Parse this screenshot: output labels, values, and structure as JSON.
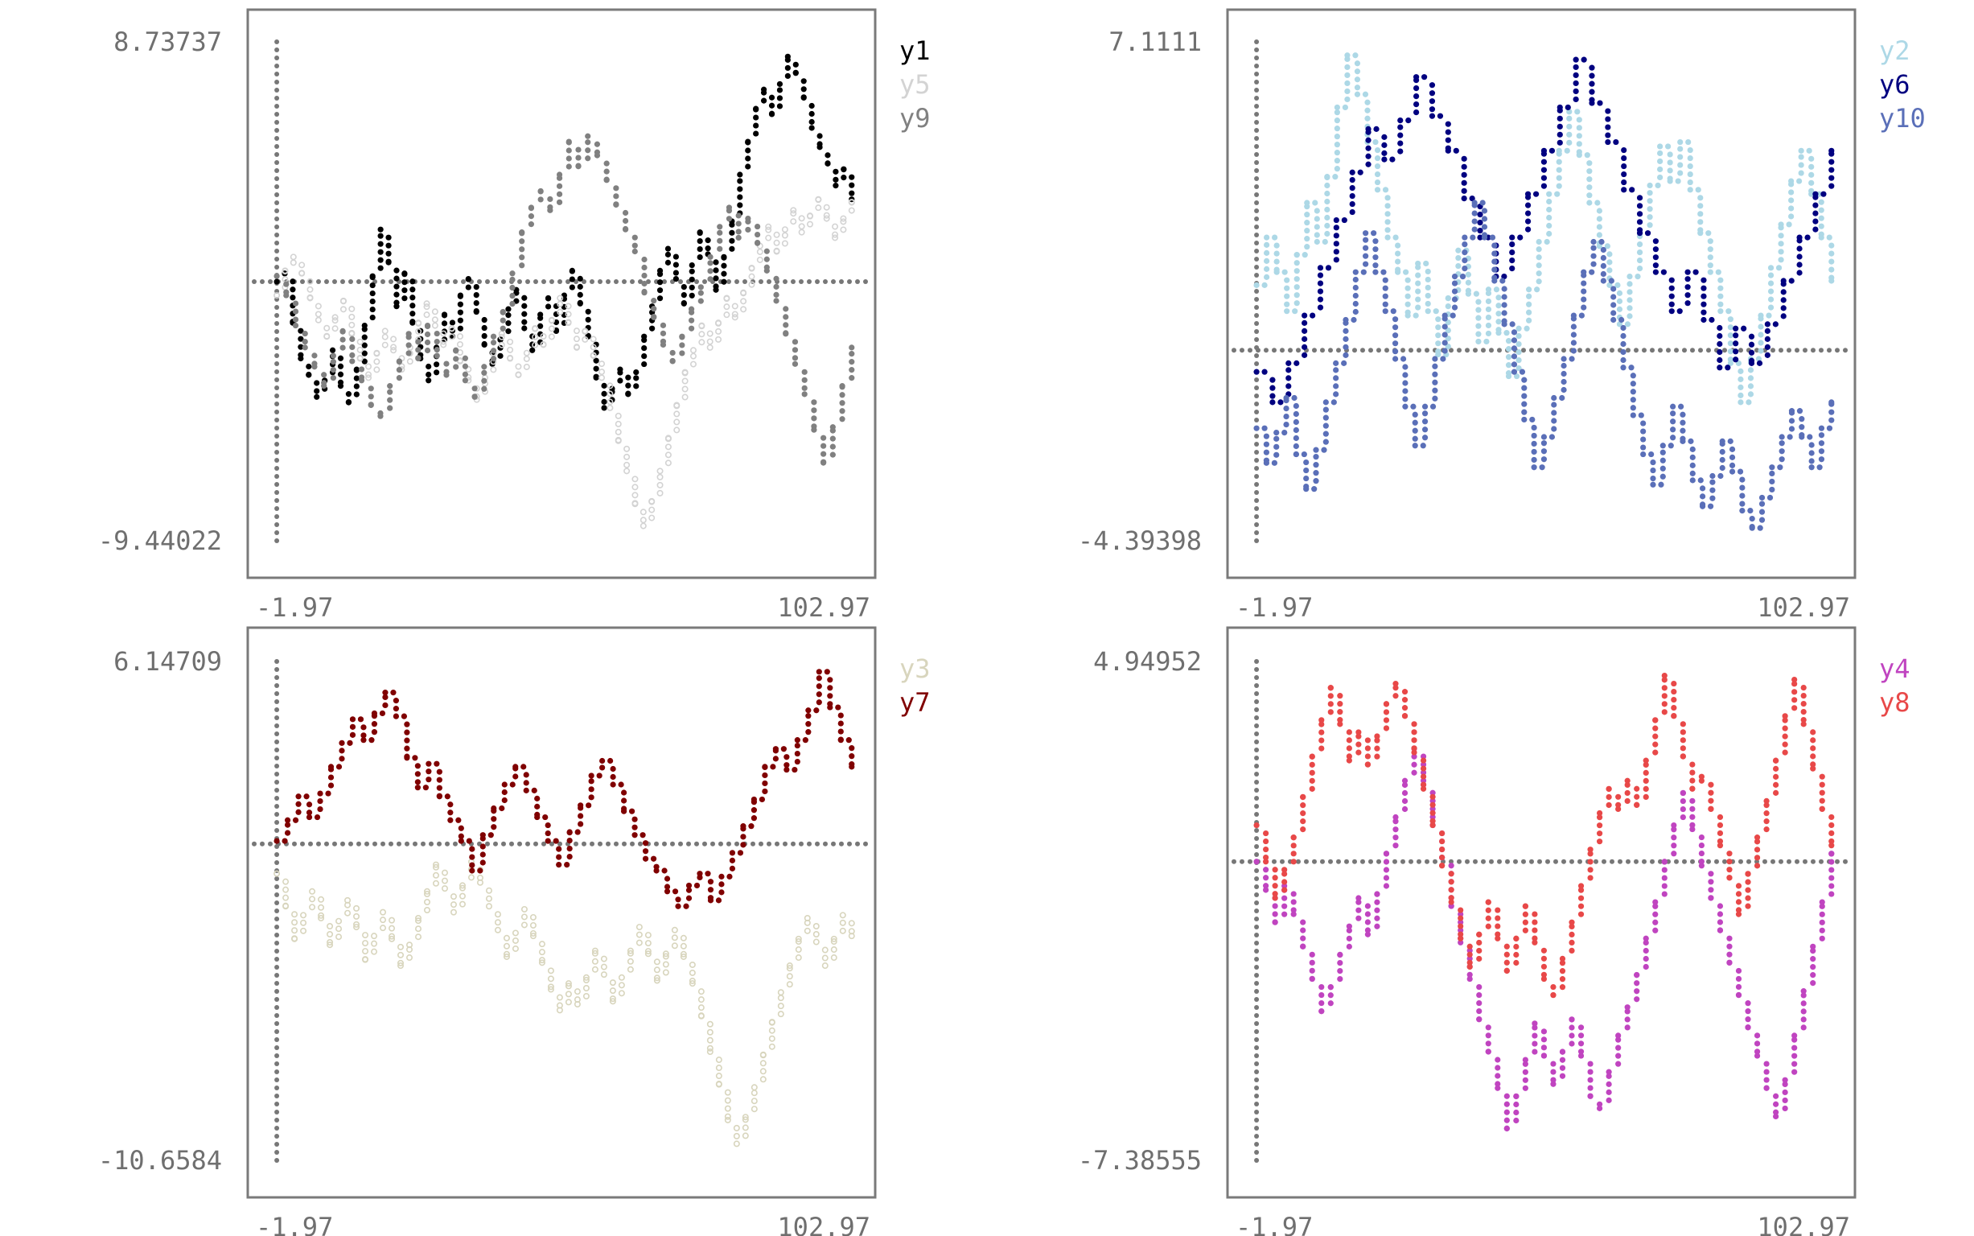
{
  "chart_data": [
    {
      "type": "scatter",
      "title": "",
      "xlabel": "",
      "ylabel": "",
      "xlim": [
        -1.97,
        102.97
      ],
      "ylim": [
        -9.44022,
        8.73737
      ],
      "x_tick_labels": [
        "-1.97",
        "102.97"
      ],
      "y_tick_labels": [
        "8.73737",
        "-9.44022"
      ],
      "legend_position": "right",
      "zero_line": true,
      "grid": false,
      "series": [
        {
          "name": "y1",
          "color": "#000000",
          "marker": "filled",
          "values": [
            0,
            0.3,
            -1.5,
            -2.8,
            -3.4,
            -4.2,
            -3.6,
            -2.5,
            -3.8,
            -4.4,
            -3.2,
            -1.6,
            0.2,
            1.9,
            0.7,
            -0.9,
            0.3,
            -1.5,
            -2.8,
            -3.6,
            -2.4,
            -1.2,
            -2.0,
            -0.5,
            0.1,
            -1.1,
            -2.3,
            -3.0,
            -2.1,
            -1.0,
            -0.3,
            -1.7,
            -2.5,
            -1.2,
            -0.6,
            -1.8,
            -0.5,
            0.4,
            -0.8,
            -2.0,
            -3.5,
            -4.6,
            -3.9,
            -3.2,
            -4.1,
            -3.3,
            -2.0,
            -0.9,
            0.4,
            1.2,
            0.1,
            -0.8,
            0.6,
            1.8,
            1.0,
            -0.3,
            0.9,
            2.2,
            3.9,
            5.1,
            6.3,
            7.0,
            6.1,
            7.2,
            8.2,
            7.6,
            6.7,
            5.6,
            4.9,
            4.3,
            3.5,
            4.1,
            3.0
          ]
        },
        {
          "name": "y5",
          "color": "#d3d3d3",
          "marker": "hollow",
          "values": [
            -0.5,
            0.4,
            0.9,
            0.3,
            -0.6,
            -1.4,
            -2.0,
            -1.3,
            -0.7,
            -1.9,
            -2.8,
            -3.5,
            -2.6,
            -1.8,
            -2.5,
            -3.2,
            -2.4,
            -1.5,
            -0.8,
            -1.6,
            -2.3,
            -1.7,
            -2.9,
            -3.6,
            -4.3,
            -3.5,
            -2.6,
            -1.9,
            -2.8,
            -3.4,
            -2.6,
            -1.7,
            -2.3,
            -1.4,
            -0.6,
            -1.5,
            -2.4,
            -1.8,
            -2.7,
            -3.5,
            -4.6,
            -5.8,
            -6.9,
            -8.1,
            -8.9,
            -8.0,
            -6.9,
            -5.7,
            -4.5,
            -3.3,
            -2.5,
            -1.6,
            -2.4,
            -1.5,
            -0.6,
            -1.3,
            -0.4,
            0.5,
            1.3,
            2.0,
            1.1,
            1.9,
            2.6,
            1.8,
            2.4,
            3.0,
            2.3,
            1.6,
            2.3,
            2.9
          ]
        },
        {
          "name": "y9",
          "color": "#808080",
          "marker": "filled",
          "values": [
            0.2,
            -0.5,
            -1.6,
            -2.4,
            -3.1,
            -3.8,
            -2.7,
            -1.8,
            -2.9,
            -3.6,
            -4.5,
            -4.9,
            -3.8,
            -2.9,
            -1.9,
            -2.8,
            -1.6,
            -2.7,
            -3.4,
            -2.5,
            -3.6,
            -4.2,
            -3.1,
            -2.0,
            -1.1,
            0.3,
            1.8,
            2.7,
            3.3,
            2.6,
            3.9,
            5.1,
            4.2,
            5.3,
            4.6,
            3.7,
            2.8,
            1.9,
            1.1,
            -0.4,
            -1.3,
            -2.3,
            -2.9,
            -2.0,
            -1.0,
            -0.2,
            0.9,
            2.0,
            2.7,
            1.6,
            2.3,
            1.4,
            0.4,
            -0.7,
            -1.9,
            -3.0,
            -4.1,
            -5.4,
            -6.6,
            -5.3,
            -3.8,
            -2.4
          ]
        }
      ]
    },
    {
      "type": "scatter",
      "title": "",
      "xlabel": "",
      "ylabel": "",
      "xlim": [
        -1.97,
        102.97
      ],
      "ylim": [
        -4.39398,
        7.1111
      ],
      "x_tick_labels": [
        "-1.97",
        "102.97"
      ],
      "y_tick_labels": [
        "7.1111",
        "-4.39398"
      ],
      "legend_position": "right",
      "zero_line": true,
      "grid": false,
      "series": [
        {
          "name": "y2",
          "color": "#add8e6",
          "marker": "filled",
          "values": [
            1.5,
            2.6,
            1.8,
            0.9,
            2.2,
            3.4,
            2.5,
            4.0,
            5.6,
            6.8,
            5.9,
            4.8,
            3.7,
            2.6,
            1.8,
            0.8,
            2.0,
            0.9,
            -0.1,
            1.2,
            2.3,
            1.3,
            0.2,
            1.4,
            0.4,
            -0.6,
            0.5,
            1.4,
            2.5,
            3.6,
            4.6,
            5.5,
            4.5,
            3.4,
            2.4,
            1.5,
            0.6,
            1.7,
            2.7,
            3.8,
            4.7,
            3.9,
            4.8,
            3.7,
            2.7,
            1.8,
            0.9,
            -0.3,
            -1.2,
            -0.2,
            0.8,
            1.9,
            2.9,
            3.9,
            4.6,
            3.6,
            2.6,
            1.6
          ]
        },
        {
          "name": "y6",
          "color": "#000080",
          "marker": "filled",
          "values": [
            -0.5,
            -1.2,
            -0.3,
            0.8,
            1.9,
            3.0,
            4.1,
            5.1,
            4.4,
            5.3,
            6.3,
            5.4,
            4.6,
            3.5,
            2.6,
            1.7,
            2.6,
            3.6,
            4.6,
            5.6,
            6.7,
            5.7,
            4.8,
            3.7,
            2.7,
            1.8,
            0.9,
            1.8,
            0.7,
            -0.4,
            0.5,
            -0.3,
            0.6,
            1.6,
            2.6,
            3.6,
            4.6
          ]
        },
        {
          "name": "y10",
          "color": "#5a6fb8",
          "marker": "filled",
          "values": [
            -1.8,
            -2.6,
            -1.9,
            -1.1,
            -2.4,
            -3.2,
            -2.3,
            -1.2,
            -0.3,
            0.7,
            1.8,
            2.7,
            1.8,
            0.9,
            -0.2,
            -1.3,
            -2.2,
            -1.3,
            -0.2,
            0.8,
            1.7,
            2.6,
            3.4,
            2.6,
            1.6,
            0.6,
            -0.5,
            -1.6,
            -2.7,
            -2.0,
            -1.1,
            -0.2,
            0.8,
            1.8,
            2.5,
            1.6,
            0.7,
            -0.4,
            -1.5,
            -2.4,
            -3.1,
            -2.2,
            -1.3,
            -2.1,
            -3.0,
            -3.6,
            -2.9,
            -2.1,
            -2.8,
            -3.7,
            -4.1,
            -3.4,
            -2.7,
            -2.0,
            -1.4,
            -2.0,
            -2.7,
            -1.8,
            -1.2
          ]
        }
      ]
    },
    {
      "type": "scatter",
      "title": "",
      "xlabel": "",
      "ylabel": "",
      "xlim": [
        -1.97,
        102.97
      ],
      "ylim": [
        -10.6584,
        6.14709
      ],
      "x_tick_labels": [
        "-1.97",
        "102.97"
      ],
      "y_tick_labels": [
        "6.14709",
        "-10.6584"
      ],
      "legend_position": "right",
      "zero_line": true,
      "grid": false,
      "series": [
        {
          "name": "y3",
          "color": "#d8d5bd",
          "marker": "hollow",
          "values": [
            -1.0,
            -2.1,
            -3.2,
            -2.4,
            -1.6,
            -2.5,
            -3.4,
            -2.6,
            -1.9,
            -2.8,
            -3.9,
            -3.1,
            -2.3,
            -3.2,
            -4.1,
            -3.4,
            -2.5,
            -1.6,
            -0.7,
            -1.5,
            -2.3,
            -1.4,
            -0.6,
            -1.3,
            -2.1,
            -2.9,
            -3.8,
            -3.0,
            -2.2,
            -3.1,
            -4.0,
            -4.9,
            -5.6,
            -4.7,
            -5.4,
            -4.5,
            -3.6,
            -4.4,
            -5.3,
            -4.5,
            -3.6,
            -2.8,
            -3.7,
            -4.6,
            -3.7,
            -2.9,
            -3.8,
            -4.7,
            -5.8,
            -7.0,
            -8.1,
            -9.3,
            -10.1,
            -9.2,
            -8.2,
            -7.1,
            -6.0,
            -5.0,
            -4.1,
            -3.2,
            -2.5,
            -3.3,
            -4.1,
            -3.2,
            -2.4,
            -3.1
          ]
        },
        {
          "name": "y7",
          "color": "#800000",
          "marker": "filled",
          "values": [
            0.1,
            0.8,
            1.6,
            0.9,
            1.7,
            2.6,
            3.4,
            4.2,
            3.5,
            4.4,
            5.1,
            4.3,
            2.9,
            1.9,
            2.7,
            1.6,
            0.8,
            0.1,
            -0.9,
            0.3,
            1.2,
            2.0,
            2.6,
            1.8,
            0.9,
            0.1,
            -0.7,
            0.4,
            1.3,
            2.3,
            2.8,
            2.0,
            1.1,
            0.3,
            -0.5,
            -0.9,
            -1.6,
            -2.1,
            -1.4,
            -1.0,
            -1.9,
            -1.1,
            -0.3,
            0.6,
            1.5,
            2.6,
            3.2,
            2.5,
            3.5,
            4.5,
            5.8,
            4.6,
            3.5,
            2.6
          ]
        }
      ]
    },
    {
      "type": "scatter",
      "title": "",
      "xlabel": "",
      "ylabel": "",
      "xlim": [
        -1.97,
        102.97
      ],
      "ylim": [
        -7.38555,
        4.94952
      ],
      "x_tick_labels": [
        "-1.97",
        "102.97"
      ],
      "y_tick_labels": [
        "4.94952",
        "-7.38555"
      ],
      "legend_position": "right",
      "zero_line": true,
      "grid": false,
      "series": [
        {
          "name": "y4",
          "color": "#c044c0",
          "marker": "filled",
          "values": [
            0.0,
            -0.7,
            -1.5,
            -0.6,
            -1.3,
            -2.1,
            -2.9,
            -3.7,
            -3.1,
            -2.3,
            -1.6,
            -0.9,
            -1.8,
            -0.8,
            0.2,
            1.1,
            2.0,
            2.8,
            1.9,
            0.9,
            0.1,
            -1.1,
            -2.0,
            -2.9,
            -3.9,
            -4.7,
            -5.6,
            -6.6,
            -5.8,
            -4.9,
            -4.0,
            -4.8,
            -5.5,
            -4.7,
            -3.9,
            -4.8,
            -5.8,
            -6.1,
            -5.2,
            -4.3,
            -3.6,
            -2.8,
            -1.9,
            -1.0,
            0.0,
            0.9,
            1.7,
            0.8,
            -0.1,
            -0.9,
            -1.7,
            -2.5,
            -3.3,
            -4.1,
            -4.8,
            -5.6,
            -6.3,
            -5.4,
            -4.3,
            -3.2,
            -2.1,
            -1.0,
            0.2
          ]
        },
        {
          "name": "y8",
          "color": "#e84848",
          "marker": "filled",
          "values": [
            0.9,
            0.0,
            -0.9,
            -0.2,
            0.6,
            1.6,
            2.6,
            3.5,
            4.3,
            3.4,
            2.5,
            3.2,
            2.4,
            3.1,
            3.9,
            4.4,
            3.6,
            2.7,
            1.8,
            0.9,
            -0.1,
            -1.0,
            -1.9,
            -2.6,
            -1.8,
            -1.0,
            -1.9,
            -2.7,
            -1.9,
            -1.1,
            -2.0,
            -2.9,
            -3.3,
            -2.4,
            -1.5,
            -0.6,
            0.3,
            1.2,
            1.8,
            1.3,
            2.0,
            1.4,
            2.5,
            3.5,
            4.6,
            3.6,
            2.6,
            1.8,
            2.1,
            1.3,
            0.4,
            -0.4,
            -1.3,
            -0.3,
            0.6,
            1.5,
            2.5,
            3.6,
            4.5,
            3.4,
            2.3,
            1.3,
            0.4
          ]
        }
      ]
    }
  ]
}
